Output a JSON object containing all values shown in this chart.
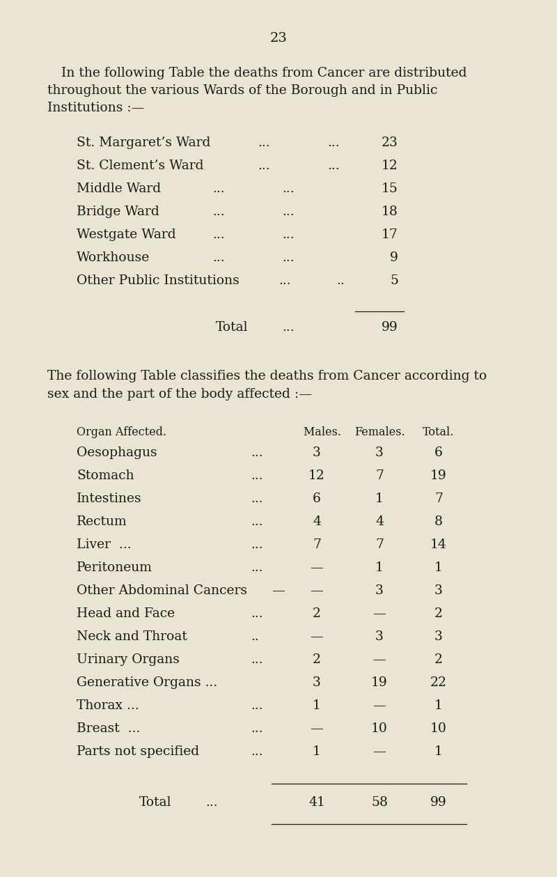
{
  "page_number": "23",
  "bg_color": "#e9e5d2",
  "text_color": "#1a1a1a",
  "para1_line1": "In the following Table the deaths from Cancer are distributed",
  "para1_line2": "throughout the various Wards of the Borough and in Public",
  "para1_line3": "Institutions :—",
  "ward_rows": [
    {
      "label": "St. Margaret’s Ward",
      "dots1": "...",
      "dots2": "...",
      "value": "23"
    },
    {
      "label": "St. Clement’s Ward",
      "dots1": "...",
      "dots2": "...",
      "value": "12"
    },
    {
      "label": "Middle Ward",
      "dots1": "...",
      "dots2": "...",
      "value": "15"
    },
    {
      "label": "Bridge Ward",
      "dots1": "...",
      "dots2": "...",
      "value": "18"
    },
    {
      "label": "Westgate Ward",
      "dots1": "...",
      "dots2": "...",
      "value": "17"
    },
    {
      "label": "Workhouse",
      "dots1": "...",
      "dots2": "...",
      "value": "9"
    },
    {
      "label": "Other Public Institutions",
      "dots1": "...",
      "dots2": "..",
      "value": "5"
    }
  ],
  "ward_total_label": "Total",
  "ward_total_dots": "...",
  "ward_total_value": "99",
  "para2_line1": "The following Table classifies the deaths from Cancer according to",
  "para2_line2": "sex and the part of the body affected :—",
  "t2_header_organ": "Organ Affected.",
  "t2_header_males": " Males.",
  "t2_header_females": "Females.",
  "t2_header_total": "Total.",
  "table2_rows": [
    {
      "organ": "Oesophagus",
      "dots": "...",
      "males": "3",
      "females": "3",
      "total": "6"
    },
    {
      "organ": "Stomach",
      "dots": "...",
      "males": "12",
      "females": "7",
      "total": "19"
    },
    {
      "organ": "Intestines",
      "dots": "...",
      "males": "6",
      "females": "1",
      "total": "7"
    },
    {
      "organ": "Rectum",
      "dots": "...",
      "males": "4",
      "females": "4",
      "total": "8"
    },
    {
      "organ": "Liver  ...",
      "dots": "...",
      "males": "7",
      "females": "7",
      "total": "14"
    },
    {
      "organ": "Peritoneum",
      "dots": "...",
      "males": "—",
      "females": "1",
      "total": "1"
    },
    {
      "organ": "Other Abdominal Cancers",
      "dots": "—",
      "males": "",
      "females": "3",
      "total": "3"
    },
    {
      "organ": "Head and Face",
      "dots": "...",
      "males": "2",
      "females": "—",
      "total": "2"
    },
    {
      "organ": "Neck and Throat",
      "dots": "..",
      "males": "—",
      "females": "3",
      "total": "3"
    },
    {
      "organ": "Urinary Organs",
      "dots": "...",
      "males": "2",
      "females": "—",
      "total": "2"
    },
    {
      "organ": "Generative Organs ...",
      "dots": "",
      "males": "3",
      "females": "19",
      "total": "22"
    },
    {
      "organ": "Thorax ...",
      "dots": "...",
      "males": "1",
      "females": "—",
      "total": "1"
    },
    {
      "organ": "Breast  ...",
      "dots": "...",
      "males": "—",
      "females": "10",
      "total": "10"
    },
    {
      "organ": "Parts not specified",
      "dots": "...",
      "males": "1",
      "females": "—",
      "total": "1"
    }
  ],
  "t2_total_label": "Total",
  "t2_total_dots": "...",
  "t2_total_males": "41",
  "t2_total_females": "58",
  "t2_total_total": "99"
}
